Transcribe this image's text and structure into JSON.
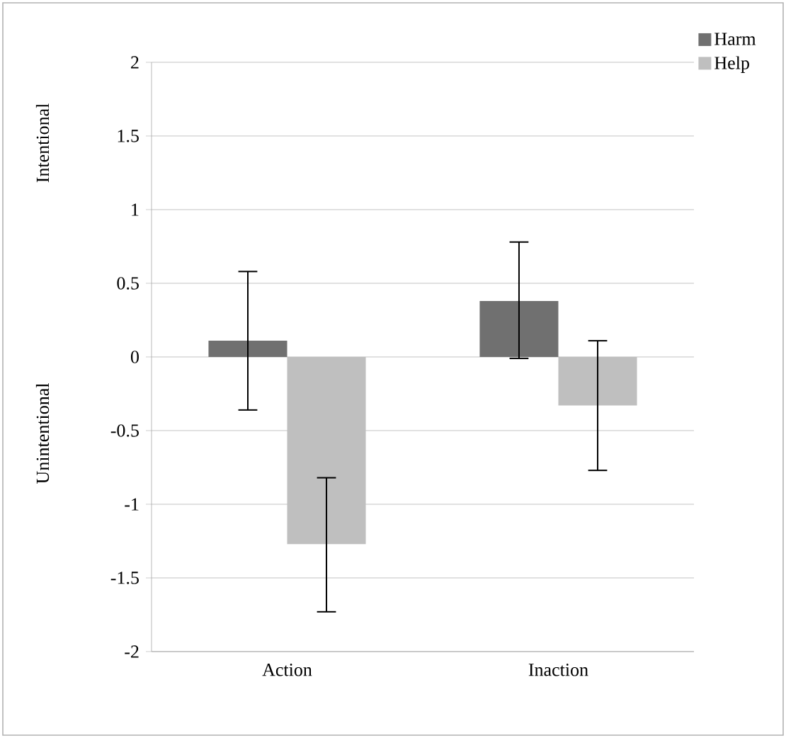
{
  "chart_data": {
    "type": "bar",
    "categories": [
      "Action",
      "Inaction"
    ],
    "series": [
      {
        "name": "Harm",
        "color": "#707070",
        "values": [
          0.11,
          0.38
        ],
        "errors": [
          [
            -0.36,
            0.58
          ],
          [
            -0.01,
            0.78
          ]
        ]
      },
      {
        "name": "Help",
        "color": "#bfbfbf",
        "values": [
          -1.27,
          -0.33
        ],
        "errors": [
          [
            -1.73,
            -0.82
          ],
          [
            -0.77,
            0.11
          ]
        ]
      }
    ],
    "ylim": [
      -2,
      2
    ],
    "yticks": [
      -2,
      -1.5,
      -1,
      -0.5,
      0,
      0.5,
      1,
      1.5,
      2
    ],
    "grid": "y",
    "legend": "top right",
    "annotations": [
      "Intentional",
      "Unintentional"
    ]
  }
}
